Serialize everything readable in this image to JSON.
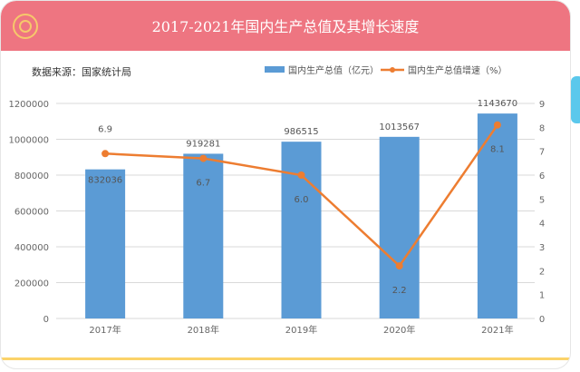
{
  "header": {
    "title": "2017-2021年国内生产总值及其增长速度",
    "icon": "target-circle-icon"
  },
  "source": "数据来源：国家统计局",
  "colors": {
    "header": "#ee7581",
    "bar": "#5b9bd5",
    "line": "#ed7d31",
    "accent_bottom": "#fbd36a"
  },
  "chart_data": {
    "type": "bar+line",
    "categories": [
      "2017年",
      "2018年",
      "2019年",
      "2020年",
      "2021年"
    ],
    "series": [
      {
        "name": "国内生产总值（亿元）",
        "type": "bar",
        "axis": "left",
        "values": [
          832036,
          919281,
          986515,
          1013567,
          1143670
        ],
        "labels": [
          "832036",
          "919281",
          "986515",
          "1013567",
          "1143670"
        ]
      },
      {
        "name": "国内生产总值增速（%）",
        "type": "line",
        "axis": "right",
        "values": [
          6.9,
          6.7,
          6.0,
          2.2,
          8.1
        ],
        "labels": [
          "6.9",
          "6.7",
          "6.0",
          "2.2",
          "8.1"
        ]
      }
    ],
    "left_axis": {
      "min": 0,
      "max": 1200000,
      "step": 200000,
      "ticks": [
        "0",
        "200000",
        "400000",
        "600000",
        "800000",
        "1000000",
        "1200000"
      ]
    },
    "right_axis": {
      "min": 0,
      "max": 9,
      "step": 1,
      "ticks": [
        "0",
        "1",
        "2",
        "3",
        "4",
        "5",
        "6",
        "7",
        "8",
        "9"
      ]
    },
    "grid": true,
    "legend": "top-right"
  }
}
